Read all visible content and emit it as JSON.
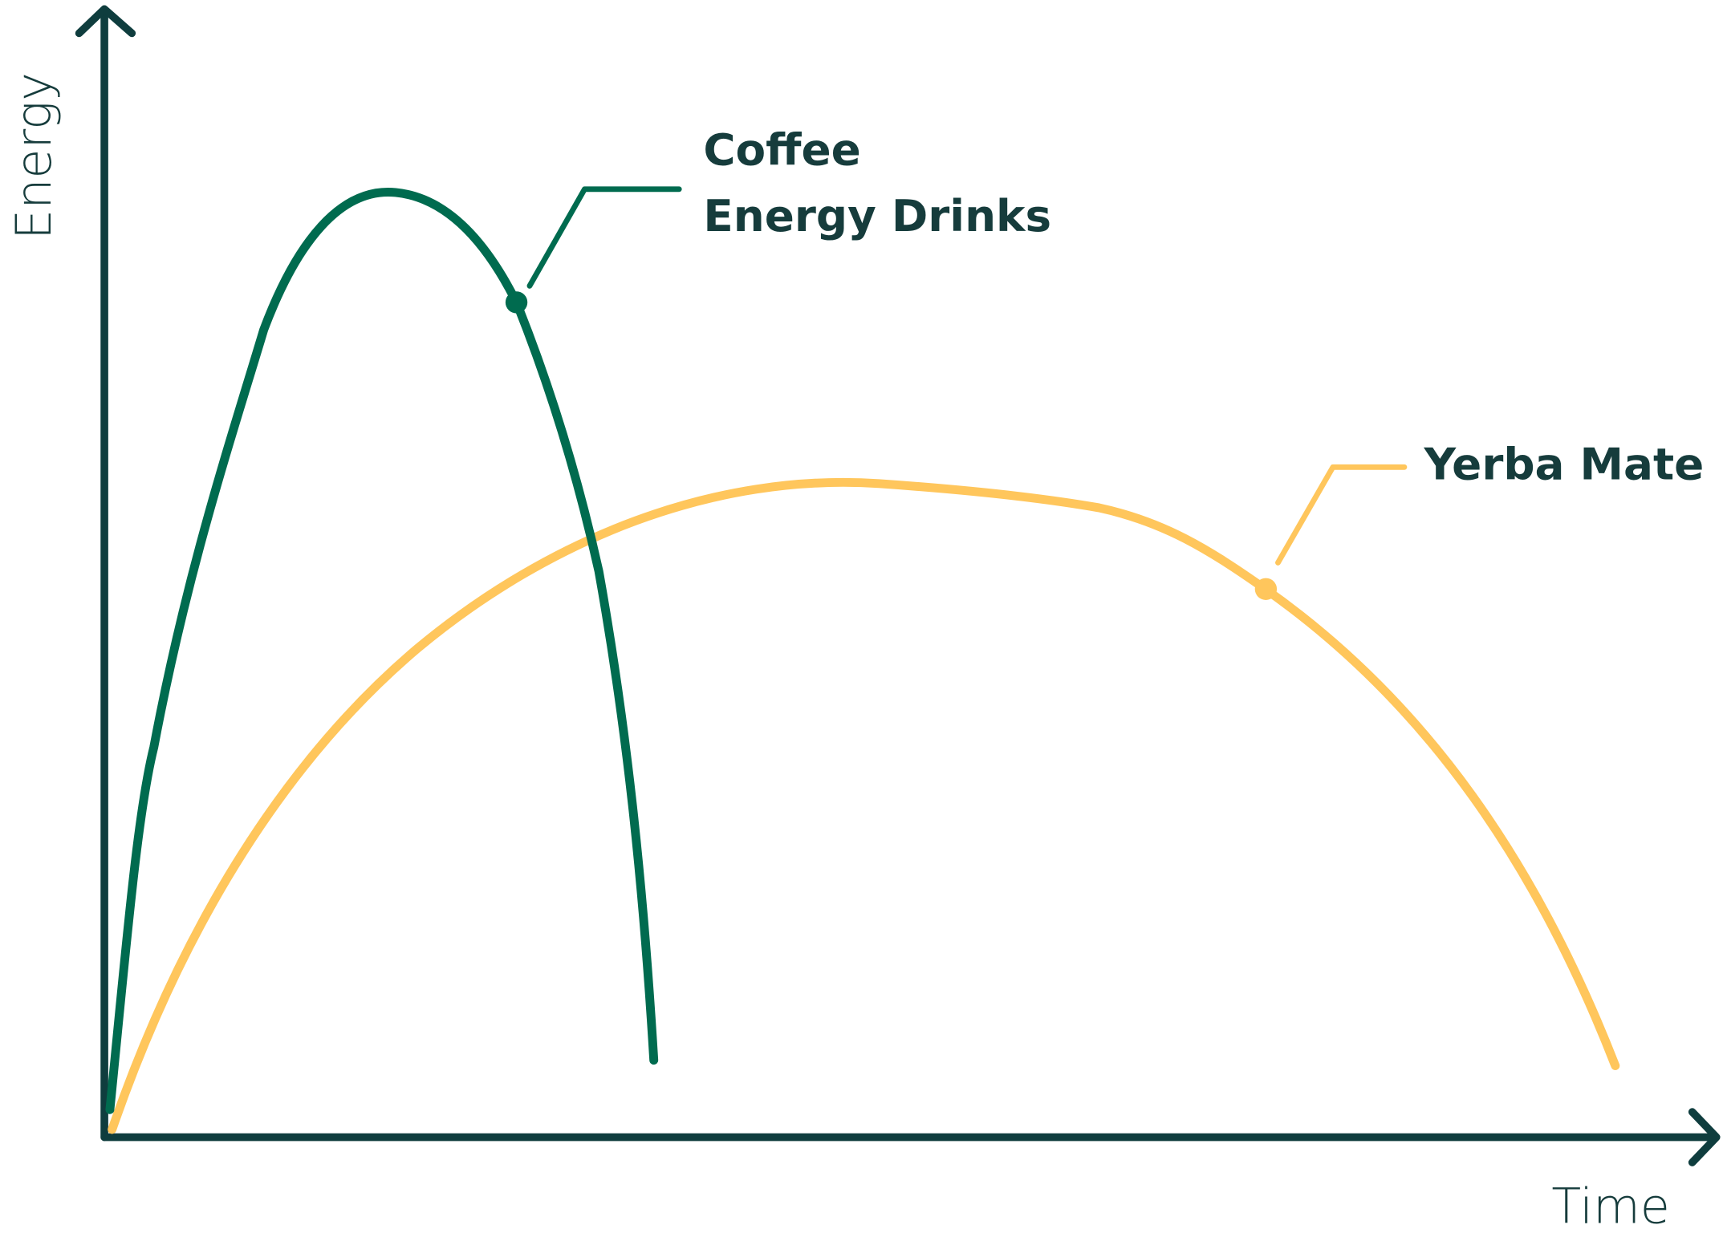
{
  "axes": {
    "x_label": "Time",
    "y_label": "Energy"
  },
  "curves": [
    {
      "labels": [
        "Coffee",
        "Energy Drinks"
      ]
    },
    {
      "labels": [
        "Yerba Mate"
      ]
    }
  ]
}
